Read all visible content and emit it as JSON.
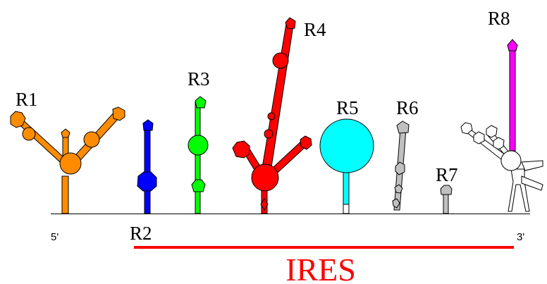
{
  "nodes": [
    {
      "label": "R1"
    },
    {
      "label": "R2"
    },
    {
      "label": "R3"
    },
    {
      "label": "R4"
    },
    {
      "label": "R5"
    },
    {
      "label": "R6"
    },
    {
      "label": "R7"
    },
    {
      "label": "R8"
    }
  ],
  "ends": {
    "five": "5'",
    "three": "3'"
  },
  "ires": {
    "label": "IRES"
  }
}
